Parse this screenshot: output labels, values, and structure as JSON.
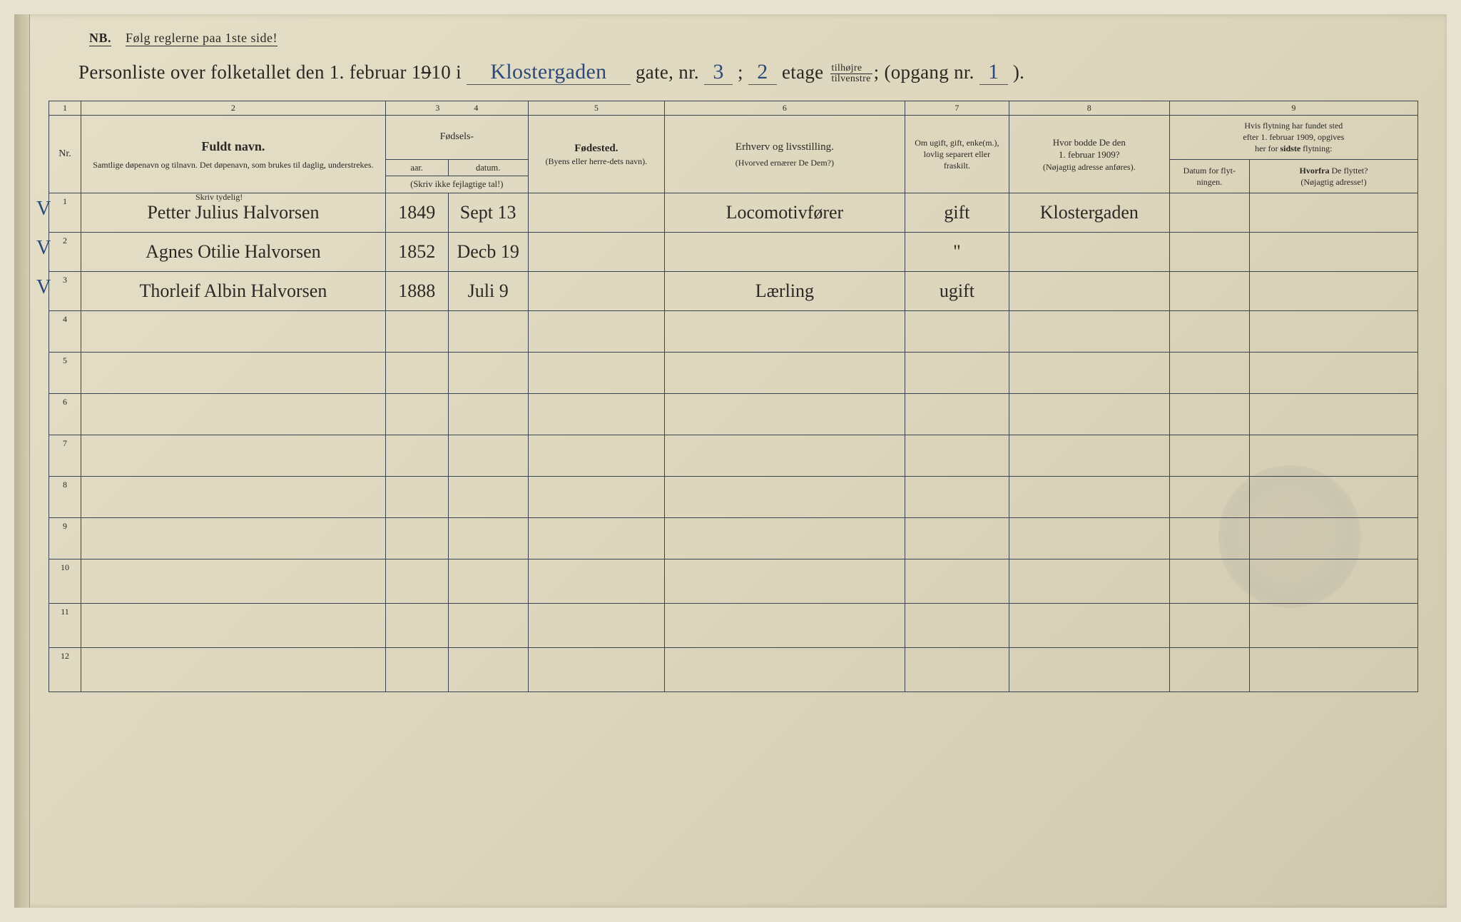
{
  "nb": {
    "label": "NB.",
    "text": "Følg reglerne paa 1ste side!"
  },
  "title": {
    "t1": "Personliste over folketallet den 1. februar 1",
    "year_strike": "9",
    "t1b": "10 i",
    "street": "Klostergaden",
    "t2": "gate, nr.",
    "house_nr": "3",
    "t3": ";",
    "floor": "2",
    "t4": "etage",
    "frac_top": "tilhøjre",
    "frac_bot": "tilvenstre",
    "t5": "; (opgang nr.",
    "stair": "1",
    "t6": ")."
  },
  "col_nums": [
    "1",
    "2",
    "3",
    "4",
    "5",
    "6",
    "7",
    "8",
    "9"
  ],
  "headers": {
    "nr": "Nr.",
    "name_big": "Fuldt navn.",
    "name_sub": "Samtlige døpenavn og tilnavn. Det døpenavn, som brukes til daglig, understrekes.",
    "birth_group": "Fødsels-",
    "year": "aar.",
    "date": "datum.",
    "year_note": "(Skriv ikke fejlagtige tal!)",
    "birthplace": "Fødested.",
    "birthplace_sub": "(Byens eller herre-dets navn).",
    "occupation": "Erhverv og livsstilling.",
    "occupation_sub": "(Hvorved ernærer De Dem?)",
    "marital": "Om ugift, gift, enke(m.), lovlig separert eller fraskilt.",
    "prev_addr": "Hvor bodde De den 1. februar 1909?",
    "prev_addr_sub": "(Nøjagtig adresse anføres).",
    "move_group": "Hvis flytning har fundet sted efter 1. februar 1909, opgives her for sidste flytning:",
    "move_date": "Datum for flyt-ningen.",
    "move_from": "Hvorfra De flyttet?",
    "move_from_sub": "(Nøjagtig adresse!)"
  },
  "skriv_tydelig": "Skriv tydelig!",
  "rows": [
    {
      "nr": "1",
      "check": "V",
      "name": "Petter Julius Halvorsen",
      "year": "1849",
      "date": "Sept 13",
      "birthplace": "",
      "occ": "Locomotivfører",
      "mar": "gift",
      "addr": "Klostergaden",
      "mvdt": "",
      "mvfrom": ""
    },
    {
      "nr": "2",
      "check": "V",
      "name": "Agnes Otilie Halvorsen",
      "year": "1852",
      "date": "Decb 19",
      "birthplace": "",
      "occ": "",
      "mar": "\"",
      "addr": "",
      "mvdt": "",
      "mvfrom": ""
    },
    {
      "nr": "3",
      "check": "V",
      "name": "Thorleif Albin Halvorsen",
      "year": "1888",
      "date": "Juli 9",
      "birthplace": "",
      "occ": "Lærling",
      "mar": "ugift",
      "addr": "",
      "mvdt": "",
      "mvfrom": ""
    }
  ],
  "empty_nrs": [
    "4",
    "5",
    "6",
    "7",
    "8",
    "9",
    "10",
    "11",
    "12"
  ]
}
